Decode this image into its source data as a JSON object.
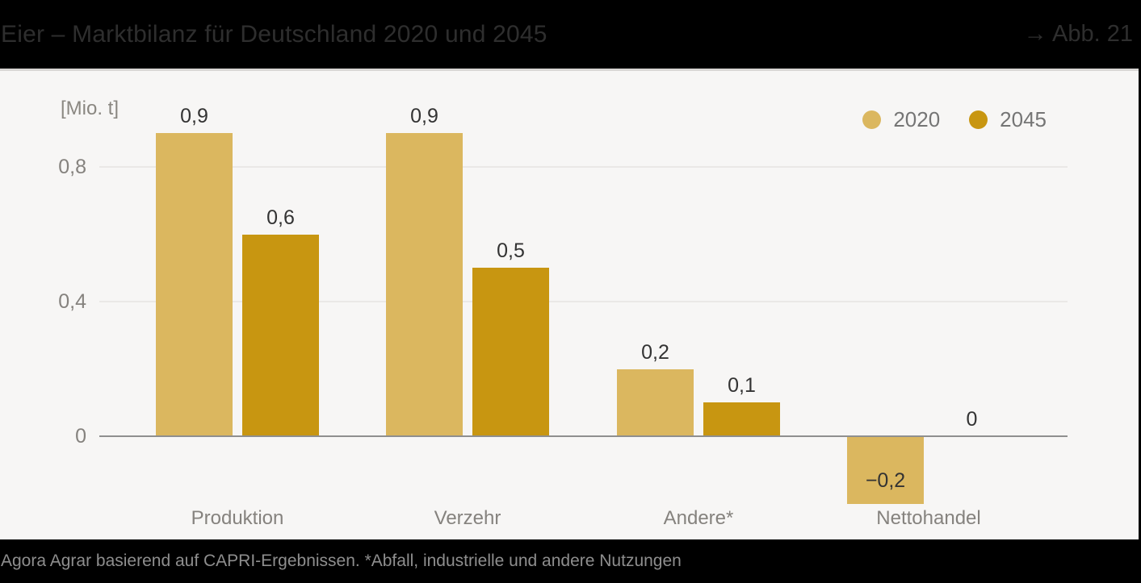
{
  "header": {
    "title": "Eier – Marktbilanz für Deutschland 2020 und 2045",
    "figure_ref": "→ Abb. 21"
  },
  "footer": {
    "source": "Agora Agrar basierend auf CAPRI-Ergebnissen. *Abfall, industrielle und andere Nutzungen"
  },
  "colors": {
    "series_2020": "#dbb75f",
    "series_2045": "#c89611",
    "header_bg": "#000000",
    "background": "#f7f6f5",
    "gridline": "#eae8e6",
    "axis_line": "#8f8f8f",
    "axis_text": "#85827e",
    "value_label": "#333333"
  },
  "chart_data": {
    "type": "bar",
    "title": "Eier – Marktbilanz für Deutschland 2020 und 2045",
    "unit_label": "[Mio. t]",
    "categories": [
      "Produktion",
      "Verzehr",
      "Andere*",
      "Nettohandel"
    ],
    "series": [
      {
        "name": "2020",
        "color": "#dbb75f",
        "values": [
          0.9,
          0.9,
          0.2,
          -0.2
        ],
        "labels": [
          "0,9",
          "0,9",
          "0,2",
          "−0,2"
        ]
      },
      {
        "name": "2045",
        "color": "#c89611",
        "values": [
          0.6,
          0.5,
          0.1,
          0
        ],
        "labels": [
          "0,6",
          "0,5",
          "0,1",
          "0"
        ]
      }
    ],
    "yticks": [
      {
        "value": 0.8,
        "label": "0,8"
      },
      {
        "value": 0.4,
        "label": "0,4"
      },
      {
        "value": 0,
        "label": "0"
      }
    ],
    "ylim": [
      -0.25,
      1.0
    ],
    "grid": true,
    "legend_position": "top-right",
    "xlabel": "",
    "ylabel": "[Mio. t]"
  }
}
